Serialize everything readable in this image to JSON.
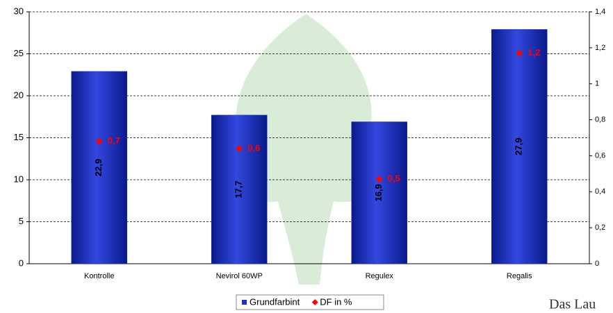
{
  "chart_data": {
    "type": "bar",
    "categories": [
      "Kontrolle",
      "Nevirol 60WP",
      "Regulex",
      "Regalis"
    ],
    "series": [
      {
        "name": "Grundfarbint",
        "color": "#1f2fc0",
        "values": [
          22.9,
          17.7,
          16.9,
          27.9
        ],
        "value_labels": [
          "22,9",
          "17,7",
          "16,9",
          "27,9"
        ]
      },
      {
        "name": "DF in %",
        "color": "#ff0000",
        "axis": "y2",
        "type": "scatter",
        "values": [
          0.68,
          0.64,
          0.47,
          1.17
        ],
        "value_labels": [
          "0,7",
          "0,6",
          "0,5",
          "1,2"
        ]
      }
    ],
    "ylim": [
      0,
      30
    ],
    "yticks": [
      0,
      5,
      10,
      15,
      20,
      25,
      30
    ],
    "y2lim": [
      0,
      1.4
    ],
    "y2ticks": [
      0,
      {
        "value": 0.2,
        "label": "0,2"
      },
      {
        "value": 0.4,
        "label": "0,4"
      },
      {
        "value": 0.6,
        "label": "0,6"
      },
      {
        "value": 0.8,
        "label": "0,8"
      },
      1,
      {
        "value": 1.2,
        "label": "1,2"
      },
      {
        "value": 1.4,
        "label": "1,4"
      }
    ],
    "grid": true,
    "logo_text": "Das Lau"
  }
}
